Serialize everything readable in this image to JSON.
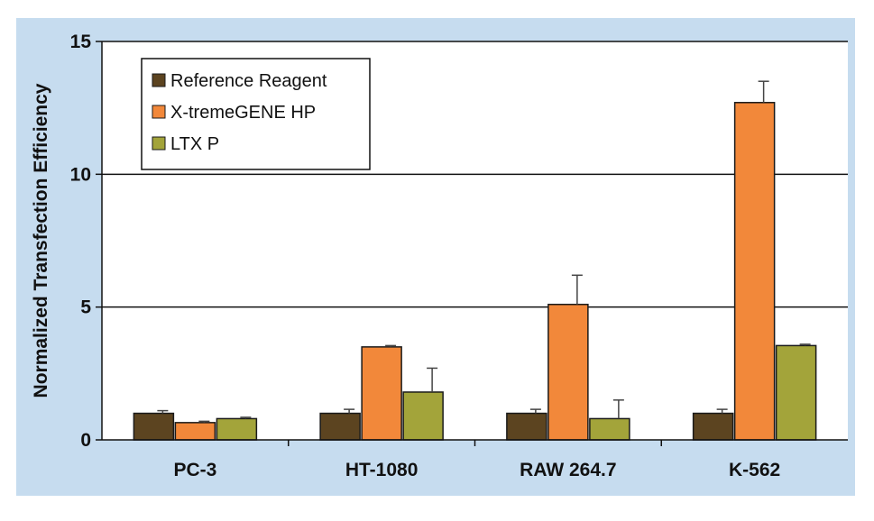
{
  "chart_data": {
    "type": "bar",
    "title": "",
    "xlabel": "",
    "ylabel": "Normalized Transfection Efficiency",
    "ylim": [
      0,
      15
    ],
    "yticks": [
      "0",
      "5",
      "10",
      "15"
    ],
    "grid": true,
    "legend_position": "top-left",
    "categories": [
      "PC-3",
      "HT-1080",
      "RAW 264.7",
      "K-562"
    ],
    "series": [
      {
        "name": "Reference Reagent",
        "color": "#5c4420",
        "values": [
          1.0,
          1.0,
          1.0,
          1.0
        ],
        "errors": [
          0.1,
          0.15,
          0.15,
          0.15
        ]
      },
      {
        "name": "X-tremeGENE HP",
        "color": "#f2883a",
        "values": [
          0.65,
          3.5,
          5.1,
          12.7
        ],
        "errors": [
          0.05,
          0.05,
          1.1,
          0.8
        ]
      },
      {
        "name": "LTX P",
        "color": "#a3a43a",
        "values": [
          0.8,
          1.8,
          0.8,
          3.55
        ],
        "errors": [
          0.05,
          0.9,
          0.7,
          0.05
        ]
      }
    ],
    "colors": {
      "background": "#c6dcef",
      "plot": "#ffffff"
    }
  }
}
